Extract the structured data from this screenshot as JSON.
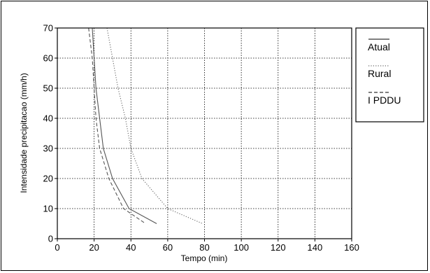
{
  "chart_data": {
    "type": "line",
    "title": "",
    "xlabel": "Tempo (min)",
    "ylabel": "Intensidade precipitacao (mm/h)",
    "xlim": [
      0,
      160
    ],
    "ylim": [
      0,
      70
    ],
    "xticks": [
      0,
      20,
      40,
      60,
      80,
      100,
      120,
      140,
      160
    ],
    "yticks": [
      0,
      10,
      20,
      30,
      40,
      50,
      60,
      70
    ],
    "grid": true,
    "legend_position": "right",
    "series": [
      {
        "name": "Atual",
        "style": "solid",
        "color": "#555555",
        "points": [
          [
            19,
            71
          ],
          [
            20,
            60
          ],
          [
            21,
            50
          ],
          [
            23,
            40
          ],
          [
            25,
            30
          ],
          [
            30,
            20
          ],
          [
            39,
            10
          ],
          [
            54,
            5
          ]
        ]
      },
      {
        "name": "Rural",
        "style": "dotted",
        "color": "#666666",
        "points": [
          [
            27,
            71
          ],
          [
            30,
            60
          ],
          [
            33,
            50
          ],
          [
            37,
            40
          ],
          [
            40,
            30
          ],
          [
            46,
            20
          ],
          [
            60,
            10
          ],
          [
            79,
            5
          ]
        ]
      },
      {
        "name": "I PDDU",
        "style": "dashed",
        "color": "#555555",
        "points": [
          [
            17,
            71
          ],
          [
            19,
            60
          ],
          [
            20,
            50
          ],
          [
            21,
            40
          ],
          [
            23,
            30
          ],
          [
            28,
            20
          ],
          [
            36,
            10
          ],
          [
            48,
            5
          ]
        ]
      }
    ]
  }
}
